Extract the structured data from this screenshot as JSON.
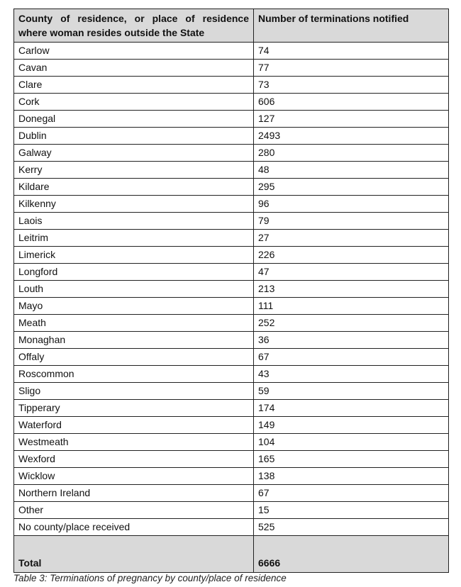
{
  "table": {
    "headers": [
      "County of residence, or place of residence where woman resides outside the State",
      "Number of terminations notified"
    ],
    "rows": [
      [
        "Carlow",
        "74"
      ],
      [
        "Cavan",
        "77"
      ],
      [
        "Clare",
        "73"
      ],
      [
        "Cork",
        "606"
      ],
      [
        "Donegal",
        "127"
      ],
      [
        "Dublin",
        "2493"
      ],
      [
        "Galway",
        "280"
      ],
      [
        "Kerry",
        "48"
      ],
      [
        "Kildare",
        "295"
      ],
      [
        "Kilkenny",
        "96"
      ],
      [
        "Laois",
        "79"
      ],
      [
        "Leitrim",
        "27"
      ],
      [
        "Limerick",
        "226"
      ],
      [
        "Longford",
        "47"
      ],
      [
        "Louth",
        "213"
      ],
      [
        "Mayo",
        "111"
      ],
      [
        "Meath",
        "252"
      ],
      [
        "Monaghan",
        "36"
      ],
      [
        "Offaly",
        "67"
      ],
      [
        "Roscommon",
        "43"
      ],
      [
        "Sligo",
        "59"
      ],
      [
        "Tipperary",
        "174"
      ],
      [
        "Waterford",
        "149"
      ],
      [
        "Westmeath",
        "104"
      ],
      [
        "Wexford",
        "165"
      ],
      [
        "Wicklow",
        "138"
      ],
      [
        "Northern Ireland",
        "67"
      ],
      [
        "Other",
        "15"
      ],
      [
        "No county/place received",
        "525"
      ]
    ],
    "total": [
      "Total",
      "6666"
    ]
  },
  "caption": "Table 3: Terminations of pregnancy by county/place of residence",
  "colors": {
    "header_bg": "#d9d9d9",
    "border": "#222222"
  }
}
